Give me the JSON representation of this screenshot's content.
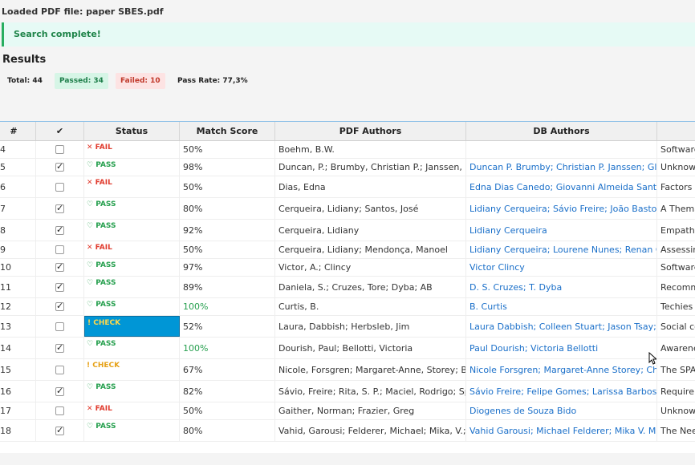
{
  "loaded_file": "Loaded PDF file: paper SBES.pdf",
  "notice": "Search complete!",
  "results_title": "Results",
  "stats": {
    "total": "Total: 44",
    "passed": "Passed: 34",
    "failed": "Failed: 10",
    "pass_rate": "Pass Rate: 77,3%"
  },
  "columns": [
    "#",
    "✔",
    "Status",
    "Match Score",
    "PDF Authors",
    "DB Authors",
    ""
  ],
  "rows": [
    {
      "num": "4",
      "checked": false,
      "status": "FAIL",
      "status_text": "✕ FAIL",
      "score": "50%",
      "pdf": "Boehm, B.W.",
      "db": "",
      "title": "Software",
      "h": 22
    },
    {
      "num": "5",
      "checked": true,
      "status": "PASS",
      "status_text": "♡ PASS",
      "score": "98%",
      "pdf": "Duncan, P.; Brumby, Christian P.; Janssen, Glo...",
      "db": "Duncan P. Brumby; Christian P. Janssen; Glori...",
      "title": "Unknow",
      "h": 22
    },
    {
      "num": "6",
      "checked": false,
      "status": "FAIL",
      "status_text": "✕ FAIL",
      "score": "50%",
      "pdf": "Dias, Edna",
      "db": "Edna Dias Canedo; Giovanni Almeida Santos",
      "title": "Factors A",
      "h": 27
    },
    {
      "num": "7",
      "checked": true,
      "status": "PASS",
      "status_text": "♡ PASS",
      "score": "80%",
      "pdf": "Cerqueira, Lidiany; Santos, José",
      "db": "Lidiany Cerqueira; Sávio Freire; João Bastos; ...",
      "title": "A Thema",
      "h": 27
    },
    {
      "num": "8",
      "checked": true,
      "status": "PASS",
      "status_text": "♡ PASS",
      "score": "92%",
      "pdf": "Cerqueira, Lidiany",
      "db": "Lidiany Cerqueira",
      "title": "Empathy",
      "h": 27
    },
    {
      "num": "9",
      "checked": false,
      "status": "FAIL",
      "status_text": "✕ FAIL",
      "score": "50%",
      "pdf": "Cerqueira, Lidiany; Mendonça, Manoel",
      "db": "Lidiany Cerqueira; Lourene Nunes; Renan Gu...",
      "title": "Assessing",
      "h": 22
    },
    {
      "num": "10",
      "checked": true,
      "status": "PASS",
      "status_text": "♡ PASS",
      "score": "97%",
      "pdf": "Victor, A.; Clincy",
      "db": "Victor Clincy",
      "title": "Software",
      "h": 22
    },
    {
      "num": "11",
      "checked": true,
      "status": "PASS",
      "status_text": "♡ PASS",
      "score": "89%",
      "pdf": "Daniela, S.; Cruzes, Tore; Dyba; AB",
      "db": "D. S. Cruzes; T. Dyba",
      "title": "Recomm",
      "h": 27
    },
    {
      "num": "12",
      "checked": true,
      "status": "PASS",
      "status_text": "♡ PASS",
      "score": "100%",
      "green": true,
      "pdf": "Curtis, B.",
      "db": "B. Curtis",
      "title": "Techies a",
      "h": 22
    },
    {
      "num": "13",
      "checked": false,
      "status": "CHECK",
      "status_text": "! CHECK",
      "selected": true,
      "score": "52%",
      "pdf": "Laura, Dabbish; Herbsleb, Jim",
      "db": "Laura Dabbish; Colleen Stuart; Jason Tsay; Ji...",
      "title": "Social co",
      "h": 27
    },
    {
      "num": "14",
      "checked": true,
      "status": "PASS",
      "status_text": "♡ PASS",
      "score": "100%",
      "green": true,
      "pdf": "Dourish, Paul; Bellotti, Victoria",
      "db": "Paul Dourish; Victoria Bellotti",
      "title": "Awarene",
      "h": 27
    },
    {
      "num": "15",
      "checked": false,
      "status": "CHECK",
      "status_text": "! CHECK",
      "score": "67%",
      "pdf": "Nicole, Forsgren; Margaret-Anne, Storey; But...",
      "db": "Nicole Forsgren; Margaret-Anne Storey; Cha...",
      "title": "The SPAC",
      "h": 27
    },
    {
      "num": "16",
      "checked": true,
      "status": "PASS",
      "status_text": "♡ PASS",
      "score": "82%",
      "pdf": "Sávio, Freire; Rita, S. P.; Maciel, Rodrigo; Spín...",
      "db": "Sávio Freire; Felipe Gomes; Larissa Barbosa; T...",
      "title": "Requiren",
      "h": 27
    },
    {
      "num": "17",
      "checked": false,
      "status": "FAIL",
      "status_text": "✕ FAIL",
      "score": "50%",
      "pdf": "Gaither, Norman; Frazier, Greg",
      "db": "Diogenes de Souza Bido",
      "title": "Unknow",
      "h": 22
    },
    {
      "num": "18",
      "checked": true,
      "status": "PASS",
      "status_text": "♡ PASS",
      "score": "80%",
      "pdf": "Vahid, Garousi; Felderer, Michael; Mika, V.; M...",
      "db": "Vahid Garousi; Michael Felderer; Mika V. Mä...",
      "title": "The Need",
      "h": 27
    }
  ]
}
